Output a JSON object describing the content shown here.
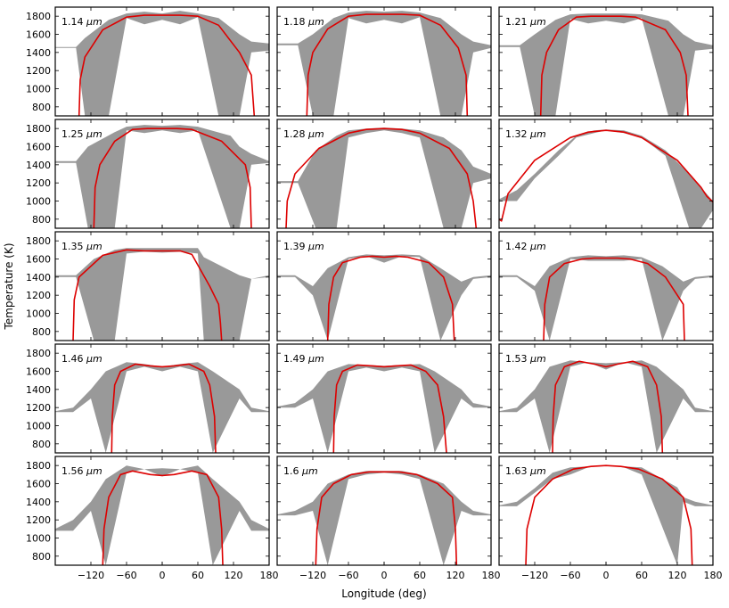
{
  "chart_data": {
    "type": "area",
    "layout": "5x3 small multiples",
    "xlabel": "Longitude (deg)",
    "ylabel": "Temperature (K)",
    "xlim": [
      -180,
      180
    ],
    "ylim": [
      700,
      1900
    ],
    "xticks": [
      -120,
      -60,
      0,
      60,
      120,
      180
    ],
    "yticks": [
      800,
      1000,
      1200,
      1400,
      1600,
      1800
    ],
    "colors": {
      "band": "#999999",
      "model": "#dd0000",
      "frame": "#000000"
    },
    "panels": [
      {
        "label": "1.14",
        "unit": "μm",
        "lon": [
          -180,
          -145,
          -130,
          -90,
          -60,
          -30,
          0,
          30,
          60,
          95,
          130,
          150,
          180
        ],
        "band_low": [
          1450,
          1450,
          700,
          700,
          1780,
          1710,
          1760,
          1710,
          1790,
          700,
          700,
          1400,
          1420
        ],
        "band_high": [
          1460,
          1460,
          1560,
          1760,
          1830,
          1850,
          1830,
          1860,
          1830,
          1780,
          1600,
          1520,
          1500
        ],
        "model_lon": [
          -140,
          -138,
          -130,
          -100,
          -60,
          -30,
          0,
          30,
          60,
          95,
          130,
          150,
          155
        ],
        "model_temp": [
          700,
          1100,
          1350,
          1650,
          1790,
          1810,
          1810,
          1810,
          1800,
          1700,
          1400,
          1150,
          700
        ]
      },
      {
        "label": "1.18",
        "unit": "μm",
        "lon": [
          -180,
          -145,
          -120,
          -85,
          -60,
          -30,
          0,
          30,
          60,
          95,
          130,
          150,
          180
        ],
        "band_low": [
          1480,
          1480,
          700,
          700,
          1780,
          1720,
          1760,
          1720,
          1790,
          700,
          700,
          1400,
          1450
        ],
        "band_high": [
          1500,
          1500,
          1600,
          1780,
          1840,
          1860,
          1850,
          1860,
          1840,
          1780,
          1600,
          1520,
          1480
        ],
        "model_lon": [
          -130,
          -128,
          -120,
          -95,
          -60,
          -30,
          0,
          30,
          60,
          95,
          125,
          138,
          140
        ],
        "model_temp": [
          700,
          1150,
          1400,
          1660,
          1800,
          1820,
          1820,
          1820,
          1810,
          1700,
          1450,
          1150,
          700
        ]
      },
      {
        "label": "1.21",
        "unit": "μm",
        "lon": [
          -180,
          -145,
          -120,
          -85,
          -60,
          -30,
          0,
          30,
          60,
          105,
          130,
          150,
          180
        ],
        "band_low": [
          1460,
          1460,
          700,
          700,
          1770,
          1720,
          1750,
          1720,
          1780,
          700,
          700,
          1420,
          1440
        ],
        "band_high": [
          1480,
          1480,
          1600,
          1760,
          1820,
          1830,
          1830,
          1830,
          1820,
          1750,
          1600,
          1520,
          1480
        ],
        "model_lon": [
          -110,
          -108,
          -100,
          -80,
          -50,
          -25,
          0,
          25,
          50,
          100,
          125,
          135,
          138
        ],
        "model_temp": [
          700,
          1150,
          1400,
          1650,
          1790,
          1800,
          1800,
          1800,
          1790,
          1650,
          1400,
          1150,
          700
        ]
      },
      {
        "label": "1.25",
        "unit": "μm",
        "lon": [
          -180,
          -145,
          -125,
          -80,
          -60,
          -30,
          0,
          30,
          60,
          115,
          130,
          150,
          180
        ],
        "band_low": [
          1420,
          1420,
          700,
          700,
          1780,
          1750,
          1780,
          1750,
          1780,
          700,
          700,
          1400,
          1420
        ],
        "band_high": [
          1440,
          1440,
          1600,
          1760,
          1820,
          1840,
          1830,
          1840,
          1820,
          1720,
          1600,
          1520,
          1440
        ],
        "model_lon": [
          -115,
          -113,
          -105,
          -80,
          -50,
          -25,
          0,
          25,
          50,
          100,
          140,
          148,
          150
        ],
        "model_temp": [
          700,
          1150,
          1400,
          1660,
          1790,
          1800,
          1800,
          1800,
          1790,
          1660,
          1400,
          1150,
          700
        ]
      },
      {
        "label": "1.28",
        "unit": "μm",
        "lon": [
          -180,
          -145,
          -115,
          -80,
          -60,
          -30,
          0,
          30,
          60,
          100,
          130,
          150,
          180
        ],
        "band_low": [
          1200,
          1200,
          700,
          700,
          1700,
          1750,
          1780,
          1750,
          1700,
          700,
          700,
          1200,
          1250
        ],
        "band_high": [
          1220,
          1220,
          1560,
          1720,
          1780,
          1800,
          1810,
          1800,
          1780,
          1700,
          1560,
          1380,
          1300
        ],
        "model_lon": [
          -165,
          -163,
          -150,
          -110,
          -60,
          -30,
          0,
          30,
          60,
          110,
          140,
          150,
          155
        ],
        "model_temp": [
          700,
          1000,
          1300,
          1580,
          1750,
          1790,
          1800,
          1790,
          1750,
          1580,
          1300,
          1000,
          700
        ]
      },
      {
        "label": "1.32",
        "unit": "μm",
        "lon": [
          -180,
          -150,
          -120,
          -80,
          -50,
          -20,
          0,
          30,
          60,
          100,
          140,
          160,
          180
        ],
        "band_low": [
          1000,
          1000,
          1250,
          1500,
          1700,
          1750,
          1780,
          1750,
          1700,
          1500,
          700,
          700,
          900
        ],
        "band_high": [
          1020,
          1120,
          1300,
          1560,
          1720,
          1780,
          1790,
          1780,
          1720,
          1560,
          1300,
          1150,
          1000
        ],
        "model_lon": [
          -180,
          -176,
          -165,
          -120,
          -60,
          -30,
          0,
          30,
          60,
          120,
          160,
          170,
          180
        ],
        "model_temp": [
          800,
          780,
          1080,
          1450,
          1700,
          1760,
          1780,
          1760,
          1700,
          1450,
          1150,
          1050,
          990
        ]
      },
      {
        "label": "1.35",
        "unit": "μm",
        "lon": [
          -180,
          -145,
          -115,
          -80,
          -60,
          -30,
          0,
          30,
          60,
          70,
          130,
          150,
          180
        ],
        "band_low": [
          1400,
          1400,
          700,
          700,
          1660,
          1680,
          1670,
          1680,
          1660,
          700,
          700,
          1380,
          1400
        ],
        "band_high": [
          1420,
          1420,
          1600,
          1700,
          1720,
          1720,
          1720,
          1720,
          1720,
          1620,
          1420,
          1380,
          1420
        ],
        "model_lon": [
          -150,
          -148,
          -140,
          -100,
          -60,
          -30,
          0,
          30,
          50,
          80,
          95,
          98,
          100
        ],
        "model_temp": [
          700,
          1150,
          1400,
          1640,
          1700,
          1690,
          1690,
          1690,
          1650,
          1300,
          1100,
          900,
          700
        ]
      },
      {
        "label": "1.39",
        "unit": "μm",
        "lon": [
          -180,
          -150,
          -120,
          -95,
          -60,
          -30,
          0,
          30,
          60,
          95,
          130,
          150,
          180
        ],
        "band_low": [
          1400,
          1400,
          1200,
          700,
          1600,
          1630,
          1560,
          1630,
          1620,
          700,
          1200,
          1380,
          1400
        ],
        "band_high": [
          1420,
          1420,
          1300,
          1500,
          1620,
          1650,
          1640,
          1650,
          1640,
          1500,
          1350,
          1400,
          1420
        ],
        "model_lon": [
          -95,
          -93,
          -85,
          -70,
          -40,
          -20,
          0,
          20,
          40,
          75,
          100,
          115,
          118
        ],
        "model_temp": [
          700,
          1100,
          1400,
          1560,
          1620,
          1630,
          1620,
          1630,
          1620,
          1560,
          1400,
          1100,
          700
        ]
      },
      {
        "label": "1.42",
        "unit": "μm",
        "lon": [
          -180,
          -150,
          -120,
          -95,
          -60,
          -30,
          0,
          30,
          60,
          95,
          130,
          150,
          180
        ],
        "band_low": [
          1400,
          1400,
          1250,
          700,
          1600,
          1580,
          1580,
          1580,
          1600,
          700,
          1250,
          1380,
          1400
        ],
        "band_high": [
          1420,
          1420,
          1300,
          1520,
          1620,
          1640,
          1630,
          1640,
          1620,
          1520,
          1350,
          1400,
          1420
        ],
        "model_lon": [
          -105,
          -103,
          -95,
          -70,
          -40,
          -20,
          0,
          20,
          40,
          70,
          100,
          130,
          132
        ],
        "model_temp": [
          700,
          1100,
          1400,
          1550,
          1600,
          1610,
          1610,
          1610,
          1600,
          1550,
          1400,
          1100,
          700
        ]
      },
      {
        "label": "1.46",
        "unit": "μm",
        "lon": [
          -180,
          -150,
          -120,
          -95,
          -60,
          -30,
          0,
          30,
          60,
          85,
          130,
          150,
          180
        ],
        "band_low": [
          1150,
          1150,
          1300,
          700,
          1600,
          1650,
          1600,
          1650,
          1600,
          700,
          1300,
          1150,
          1150
        ],
        "band_high": [
          1160,
          1200,
          1400,
          1600,
          1700,
          1680,
          1650,
          1680,
          1700,
          1600,
          1400,
          1200,
          1160
        ],
        "model_lon": [
          -85,
          -84,
          -80,
          -70,
          -45,
          -20,
          0,
          20,
          45,
          70,
          80,
          88,
          90
        ],
        "model_temp": [
          700,
          1100,
          1450,
          1600,
          1680,
          1660,
          1650,
          1660,
          1680,
          1600,
          1450,
          1100,
          700
        ]
      },
      {
        "label": "1.49",
        "unit": "μm",
        "lon": [
          -180,
          -150,
          -120,
          -95,
          -60,
          -30,
          0,
          30,
          60,
          85,
          130,
          150,
          180
        ],
        "band_low": [
          1200,
          1200,
          1300,
          700,
          1600,
          1640,
          1600,
          1640,
          1600,
          700,
          1300,
          1200,
          1200
        ],
        "band_high": [
          1210,
          1250,
          1400,
          1600,
          1680,
          1670,
          1660,
          1670,
          1680,
          1600,
          1400,
          1250,
          1210
        ],
        "model_lon": [
          -85,
          -84,
          -80,
          -70,
          -45,
          -20,
          0,
          20,
          45,
          70,
          90,
          100,
          105
        ],
        "model_temp": [
          700,
          1100,
          1450,
          1600,
          1670,
          1660,
          1650,
          1660,
          1670,
          1600,
          1450,
          1100,
          700
        ]
      },
      {
        "label": "1.53",
        "unit": "μm",
        "lon": [
          -180,
          -150,
          -120,
          -95,
          -60,
          -30,
          0,
          30,
          60,
          85,
          130,
          150,
          180
        ],
        "band_low": [
          1150,
          1150,
          1300,
          700,
          1650,
          1700,
          1620,
          1700,
          1650,
          700,
          1300,
          1150,
          1150
        ],
        "band_high": [
          1160,
          1200,
          1400,
          1650,
          1720,
          1700,
          1690,
          1700,
          1720,
          1650,
          1400,
          1200,
          1160
        ],
        "model_lon": [
          -90,
          -89,
          -85,
          -70,
          -45,
          -20,
          0,
          20,
          45,
          70,
          85,
          93,
          95
        ],
        "model_temp": [
          700,
          1100,
          1450,
          1650,
          1710,
          1680,
          1650,
          1680,
          1710,
          1650,
          1450,
          1100,
          700
        ]
      },
      {
        "label": "1.56",
        "unit": "μm",
        "lon": [
          -180,
          -150,
          -120,
          -95,
          -60,
          -30,
          0,
          30,
          60,
          85,
          130,
          150,
          180
        ],
        "band_low": [
          1080,
          1080,
          1300,
          700,
          1720,
          1760,
          1680,
          1760,
          1720,
          700,
          1300,
          1080,
          1080
        ],
        "band_high": [
          1100,
          1200,
          1400,
          1650,
          1800,
          1760,
          1770,
          1760,
          1800,
          1650,
          1400,
          1200,
          1100
        ],
        "model_lon": [
          -100,
          -98,
          -90,
          -70,
          -50,
          -20,
          0,
          20,
          50,
          75,
          95,
          100,
          102
        ],
        "model_temp": [
          700,
          1100,
          1450,
          1700,
          1740,
          1700,
          1690,
          1700,
          1740,
          1700,
          1450,
          1100,
          700
        ]
      },
      {
        "label": "1.6",
        "unit": "μm",
        "lon": [
          -180,
          -150,
          -120,
          -95,
          -60,
          -30,
          0,
          30,
          60,
          100,
          130,
          150,
          180
        ],
        "band_low": [
          1250,
          1250,
          1300,
          700,
          1650,
          1700,
          1720,
          1700,
          1650,
          700,
          1300,
          1250,
          1250
        ],
        "band_high": [
          1260,
          1300,
          1400,
          1600,
          1700,
          1740,
          1740,
          1740,
          1700,
          1600,
          1400,
          1300,
          1260
        ],
        "model_lon": [
          -115,
          -113,
          -105,
          -85,
          -55,
          -25,
          0,
          25,
          55,
          90,
          115,
          120,
          122
        ],
        "model_temp": [
          700,
          1100,
          1450,
          1600,
          1700,
          1730,
          1730,
          1730,
          1700,
          1600,
          1450,
          1100,
          700
        ]
      },
      {
        "label": "1.63",
        "unit": "μm",
        "lon": [
          -180,
          -150,
          -120,
          -90,
          -60,
          -30,
          0,
          30,
          60,
          120,
          130,
          150,
          180
        ],
        "band_low": [
          1350,
          1350,
          1500,
          1650,
          1700,
          1780,
          1800,
          1780,
          1700,
          700,
          1400,
          1350,
          1350
        ],
        "band_high": [
          1360,
          1400,
          1550,
          1720,
          1780,
          1790,
          1800,
          1790,
          1780,
          1560,
          1450,
          1400,
          1360
        ],
        "model_lon": [
          -135,
          -133,
          -120,
          -90,
          -55,
          -25,
          0,
          25,
          55,
          95,
          130,
          143,
          145
        ],
        "model_temp": [
          700,
          1100,
          1450,
          1650,
          1760,
          1790,
          1800,
          1790,
          1760,
          1650,
          1450,
          1100,
          700
        ]
      }
    ]
  }
}
